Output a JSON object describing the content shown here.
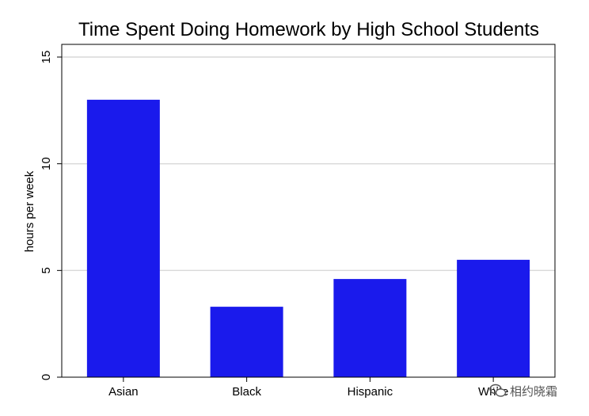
{
  "chart_data": {
    "type": "bar",
    "title": "Time Spent Doing Homework by High School Students",
    "xlabel": "",
    "ylabel": "hours per week",
    "categories": [
      "Asian",
      "Black",
      "Hispanic",
      "White"
    ],
    "values": [
      13.0,
      3.3,
      4.6,
      5.5
    ],
    "ylim": [
      0,
      15
    ],
    "yticks": [
      0,
      5,
      10,
      15
    ],
    "bar_color": "#1a1aec",
    "grid": true,
    "legend": "none"
  },
  "watermark": {
    "text": "相约晓霜"
  }
}
